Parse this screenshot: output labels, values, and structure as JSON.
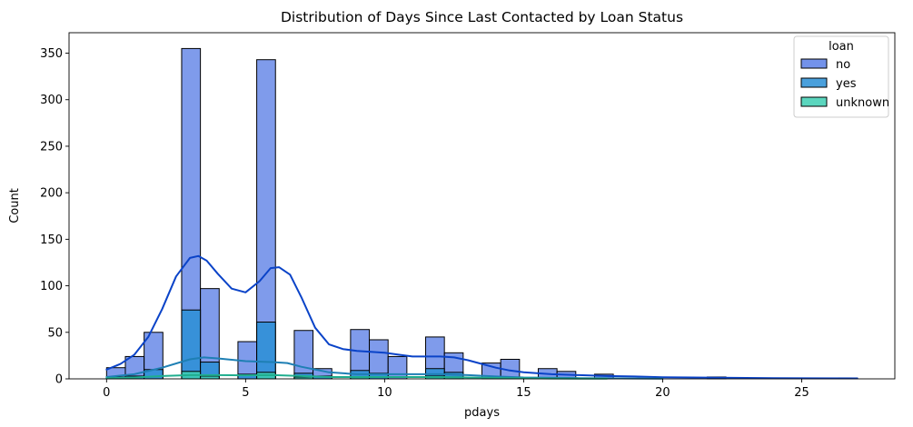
{
  "chart_data": {
    "type": "histogram",
    "title": "Distribution of Days Since Last Contacted by Loan Status",
    "xlabel": "pdays",
    "ylabel": "Count",
    "xlim": [
      -1.35,
      28.35
    ],
    "ylim": [
      0,
      372
    ],
    "xticks": [
      0,
      5,
      10,
      15,
      20,
      25
    ],
    "yticks": [
      0,
      50,
      100,
      150,
      200,
      250,
      300,
      350
    ],
    "bin_width": 0.675,
    "legend": {
      "title": "loan",
      "placement": "top-right"
    },
    "series": [
      {
        "name": "no",
        "color": "#5b7fe6",
        "kde_color": "#0a43c8",
        "bins": [
          {
            "x0": 0.0,
            "y": 12
          },
          {
            "x0": 0.675,
            "y": 24
          },
          {
            "x0": 1.35,
            "y": 50
          },
          {
            "x0": 2.7,
            "y": 355
          },
          {
            "x0": 3.375,
            "y": 97
          },
          {
            "x0": 4.725,
            "y": 40
          },
          {
            "x0": 5.4,
            "y": 343
          },
          {
            "x0": 6.75,
            "y": 52
          },
          {
            "x0": 7.425,
            "y": 11
          },
          {
            "x0": 8.775,
            "y": 53
          },
          {
            "x0": 9.45,
            "y": 42
          },
          {
            "x0": 10.125,
            "y": 24
          },
          {
            "x0": 11.475,
            "y": 45
          },
          {
            "x0": 12.15,
            "y": 28
          },
          {
            "x0": 13.5,
            "y": 17
          },
          {
            "x0": 14.175,
            "y": 21
          },
          {
            "x0": 15.525,
            "y": 11
          },
          {
            "x0": 16.2,
            "y": 8
          },
          {
            "x0": 17.55,
            "y": 5
          },
          {
            "x0": 21.6,
            "y": 2
          },
          {
            "x0": 26.325,
            "y": 1
          }
        ],
        "kde": [
          [
            0,
            10
          ],
          [
            0.5,
            16
          ],
          [
            1,
            26
          ],
          [
            1.5,
            45
          ],
          [
            2,
            75
          ],
          [
            2.5,
            110
          ],
          [
            3,
            130
          ],
          [
            3.3,
            132
          ],
          [
            3.6,
            127
          ],
          [
            4,
            113
          ],
          [
            4.5,
            97
          ],
          [
            5,
            93
          ],
          [
            5.5,
            105
          ],
          [
            5.9,
            119
          ],
          [
            6.2,
            120
          ],
          [
            6.6,
            112
          ],
          [
            7,
            88
          ],
          [
            7.5,
            55
          ],
          [
            8,
            37
          ],
          [
            8.5,
            32
          ],
          [
            9,
            30
          ],
          [
            9.5,
            29
          ],
          [
            10,
            28
          ],
          [
            10.5,
            26
          ],
          [
            11,
            24
          ],
          [
            11.5,
            24
          ],
          [
            12,
            24
          ],
          [
            12.5,
            23
          ],
          [
            13,
            20
          ],
          [
            13.5,
            16
          ],
          [
            14,
            12
          ],
          [
            14.5,
            9
          ],
          [
            15,
            7
          ],
          [
            16,
            5
          ],
          [
            17,
            4
          ],
          [
            18,
            3
          ],
          [
            19,
            2.5
          ],
          [
            20,
            1.8
          ],
          [
            22,
            1.2
          ],
          [
            24,
            0.8
          ],
          [
            27,
            0.5
          ]
        ]
      },
      {
        "name": "yes",
        "color": "#2a8fd6",
        "kde_color": "#1e7fb4",
        "bins": [
          {
            "x0": 0.0,
            "y": 2
          },
          {
            "x0": 0.675,
            "y": 3
          },
          {
            "x0": 1.35,
            "y": 10
          },
          {
            "x0": 2.7,
            "y": 74
          },
          {
            "x0": 3.375,
            "y": 18
          },
          {
            "x0": 4.725,
            "y": 5
          },
          {
            "x0": 5.4,
            "y": 61
          },
          {
            "x0": 6.75,
            "y": 6
          },
          {
            "x0": 7.425,
            "y": 3
          },
          {
            "x0": 8.775,
            "y": 9
          },
          {
            "x0": 9.45,
            "y": 6
          },
          {
            "x0": 11.475,
            "y": 11
          },
          {
            "x0": 12.15,
            "y": 7
          }
        ],
        "kde": [
          [
            0,
            2
          ],
          [
            1,
            5
          ],
          [
            2,
            12
          ],
          [
            3,
            21
          ],
          [
            3.5,
            23
          ],
          [
            4,
            22
          ],
          [
            5,
            19
          ],
          [
            6,
            18
          ],
          [
            6.5,
            17
          ],
          [
            7,
            13
          ],
          [
            8,
            7
          ],
          [
            9,
            5
          ],
          [
            10,
            5
          ],
          [
            11,
            5
          ],
          [
            12,
            5
          ],
          [
            13,
            4
          ],
          [
            14,
            2.5
          ],
          [
            15,
            1.5
          ],
          [
            17,
            0.8
          ],
          [
            20,
            0.3
          ]
        ]
      },
      {
        "name": "unknown",
        "color": "#3ecfb3",
        "kde_color": "#1fae8e",
        "bins": [
          {
            "x0": 2.7,
            "y": 8
          },
          {
            "x0": 3.375,
            "y": 3
          },
          {
            "x0": 5.4,
            "y": 7
          },
          {
            "x0": 6.75,
            "y": 2
          },
          {
            "x0": 8.775,
            "y": 2
          },
          {
            "x0": 11.475,
            "y": 3
          },
          {
            "x0": 12.15,
            "y": 2
          }
        ],
        "kde": [
          [
            0,
            0.8
          ],
          [
            1,
            1.5
          ],
          [
            2,
            3
          ],
          [
            3,
            4
          ],
          [
            4,
            4
          ],
          [
            5,
            3.8
          ],
          [
            6,
            4
          ],
          [
            7,
            3
          ],
          [
            8,
            2
          ],
          [
            9,
            2
          ],
          [
            10,
            2
          ],
          [
            11,
            2
          ],
          [
            12,
            2
          ],
          [
            13,
            1.5
          ],
          [
            14,
            1
          ],
          [
            16,
            0.4
          ],
          [
            18,
            0.2
          ]
        ]
      }
    ]
  }
}
